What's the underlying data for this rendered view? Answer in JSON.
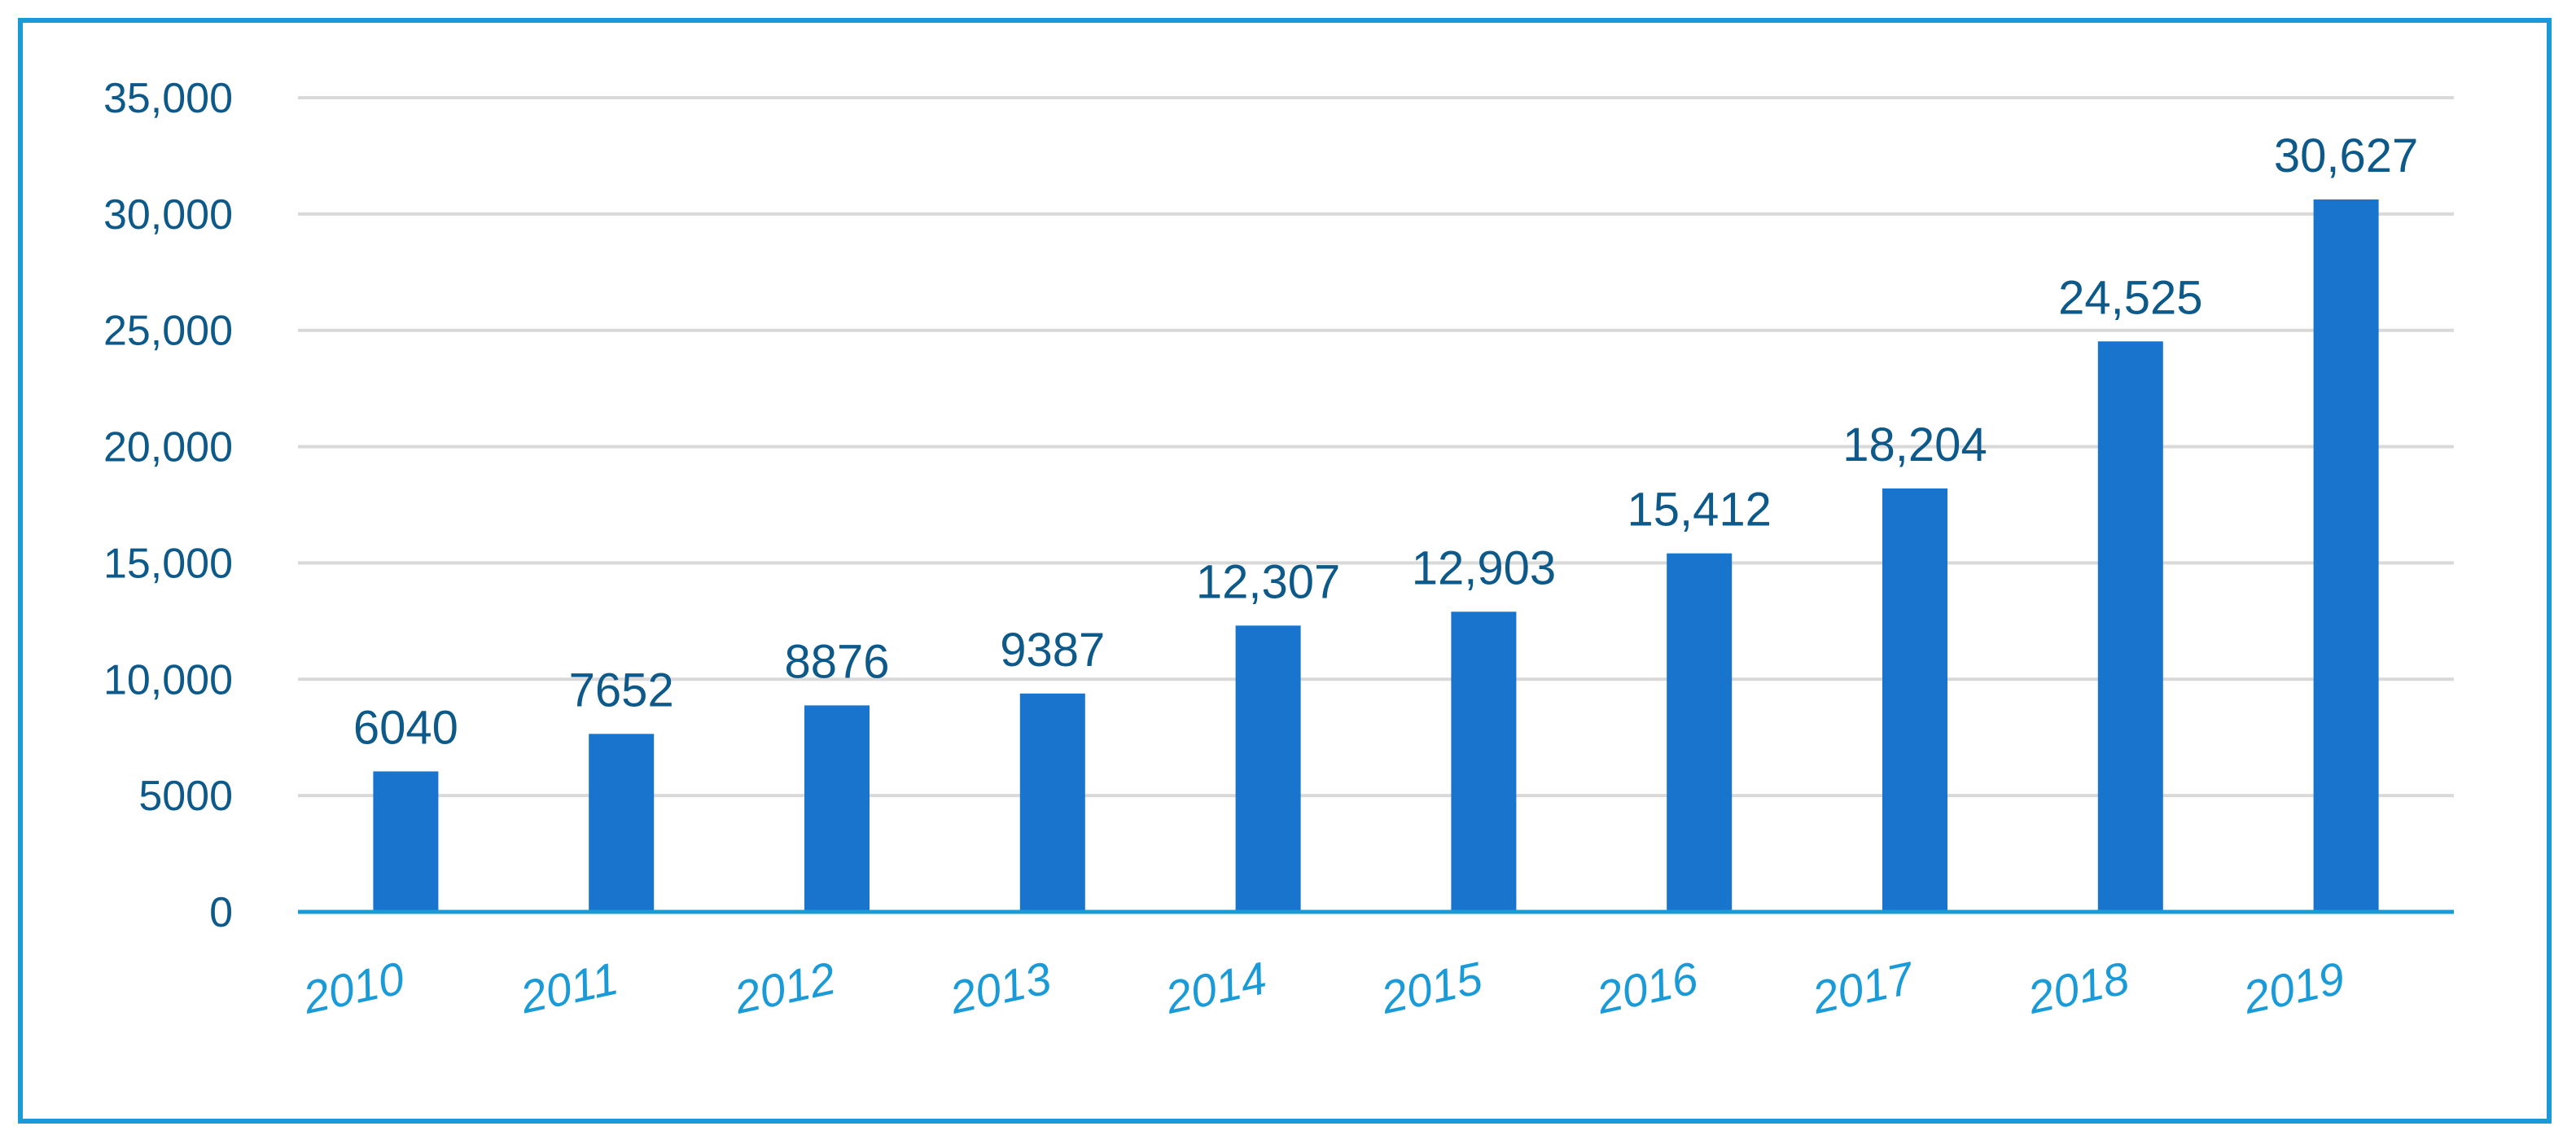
{
  "chart_data": {
    "type": "bar",
    "categories": [
      "2010",
      "2011",
      "2012",
      "2013",
      "2014",
      "2015",
      "2016",
      "2017",
      "2018",
      "2019"
    ],
    "values": [
      6040,
      7652,
      8876,
      9387,
      12307,
      12903,
      15412,
      18204,
      24525,
      30627
    ],
    "data_labels": [
      "6040",
      "7652",
      "8876",
      "9387",
      "12,307",
      "12,903",
      "15,412",
      "18,204",
      "24,525",
      "30,627"
    ],
    "title": "",
    "xlabel": "",
    "ylabel": "",
    "ylim": [
      0,
      35000
    ],
    "yticks": [
      0,
      5000,
      10000,
      15000,
      20000,
      25000,
      30000,
      35000
    ],
    "ytick_labels": [
      "0",
      "5000",
      "10,000",
      "15,000",
      "20,000",
      "25,000",
      "30,000",
      "35,000"
    ],
    "grid": true,
    "legend": "none",
    "colors": {
      "bar": "#1874cd",
      "frame": "#1a9bd7",
      "gridline": "#d9d9d9",
      "axis": "#1a9bd7",
      "tick_text": "#0d5a8a",
      "category_text": "#1a9bd7"
    }
  }
}
